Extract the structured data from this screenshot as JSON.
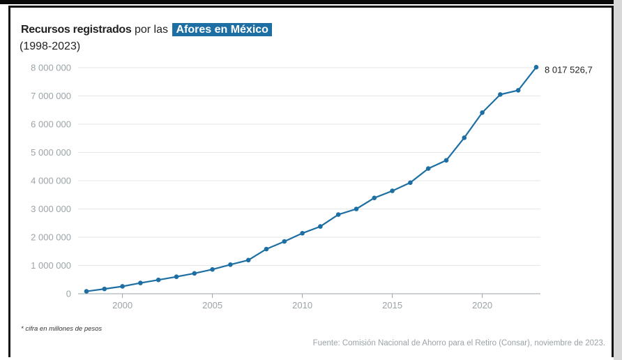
{
  "header": {
    "title_bold": "Recursos registrados",
    "title_normal": "por las",
    "title_highlight": "Afores en México",
    "subtitle": "(1998-2023)"
  },
  "footnote": "* cifra en millones de pesos",
  "source": "Fuente: Comisión Nacional de Ahorro para el Retiro (Consar), noviembre de 2023.",
  "colors": {
    "line": "#1d6fa3",
    "highlight": "#1d6fa3",
    "tick": "#9aa3a8",
    "grid": "#e6e6e6"
  },
  "chart_data": {
    "type": "line",
    "title": "Recursos registrados por las Afores en México",
    "subtitle": "(1998-2023)",
    "xlabel": "",
    "ylabel": "",
    "ylim": [
      0,
      8000000
    ],
    "xlim": [
      1998,
      2023
    ],
    "grid": true,
    "yticks": [
      0,
      1000000,
      2000000,
      3000000,
      4000000,
      5000000,
      6000000,
      7000000,
      8000000
    ],
    "ytick_labels": [
      "0",
      "1 000 000",
      "2 000 000",
      "3 000 000",
      "4 000 000",
      "5 000 000",
      "6 000 000",
      "7 000 000",
      "8 000 000"
    ],
    "xticks": [
      2000,
      2005,
      2010,
      2015,
      2020
    ],
    "xtick_labels": [
      "2000",
      "2005",
      "2010",
      "2015",
      "2020"
    ],
    "series": [
      {
        "x": [
          1998,
          1999,
          2000,
          2001,
          2002,
          2003,
          2004,
          2005,
          2006,
          2007,
          2008,
          2009,
          2010,
          2011,
          2012,
          2013,
          2014,
          2015,
          2016,
          2017,
          2018,
          2019,
          2020,
          2021,
          2022,
          2023
        ],
        "y": [
          85000,
          170000,
          260000,
          380000,
          490000,
          600000,
          720000,
          860000,
          1030000,
          1190000,
          1580000,
          1850000,
          2140000,
          2380000,
          2800000,
          3000000,
          3390000,
          3640000,
          3930000,
          4430000,
          4720000,
          5520000,
          6410000,
          7050000,
          7200000,
          8017526.7
        ]
      }
    ],
    "annotations": [
      {
        "text": "8 017 526,7",
        "x": 2023,
        "y": 8017526.7
      }
    ]
  }
}
